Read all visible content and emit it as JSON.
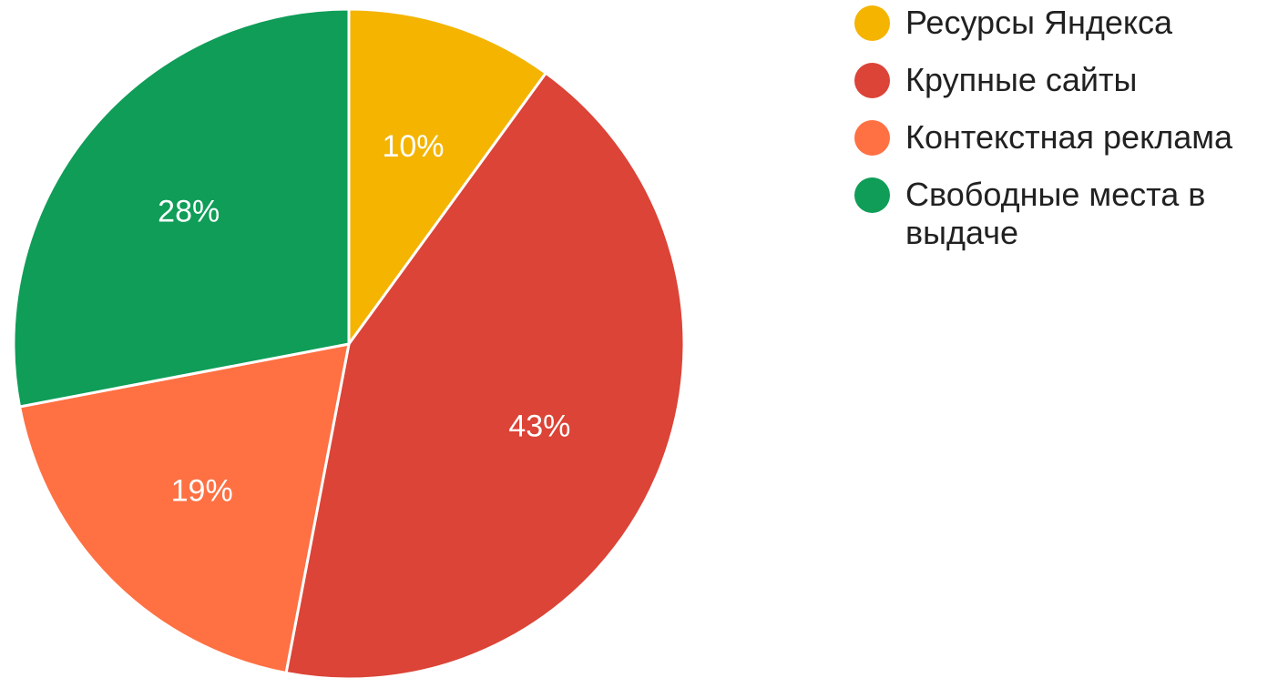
{
  "chart_data": {
    "type": "pie",
    "categories": [
      "Ресурсы Яндекса",
      "Крупные сайты",
      "Контекстная реклама",
      "Свободные места в выдаче"
    ],
    "values": [
      10,
      43,
      19,
      28
    ],
    "data_labels": [
      "10%",
      "43%",
      "19%",
      "28%"
    ],
    "colors": [
      "#f4b400",
      "#db4437",
      "#ff7043",
      "#0f9d58"
    ],
    "legend_position": "right"
  }
}
